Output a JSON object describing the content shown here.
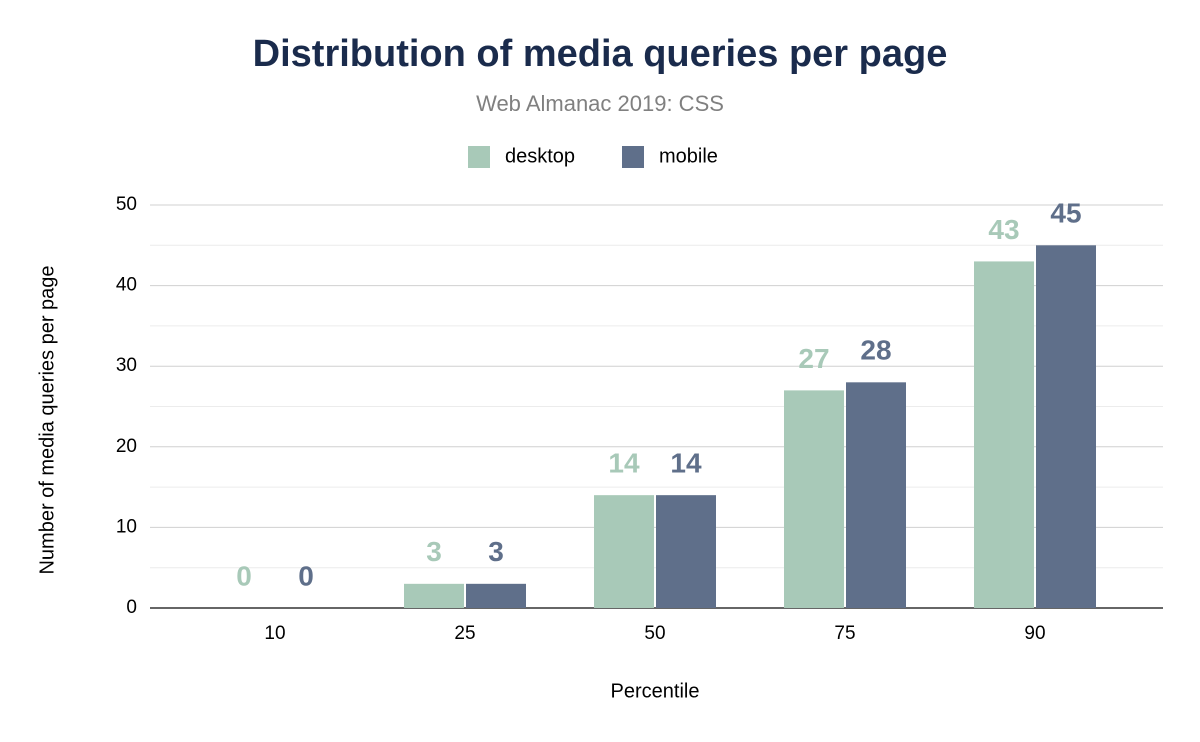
{
  "chart_data": {
    "type": "bar",
    "title": "Distribution of media queries per page",
    "subtitle": "Web Almanac 2019: CSS",
    "x_label": "Percentile",
    "y_label": "Number of media queries per page",
    "categories": [
      "10",
      "25",
      "50",
      "75",
      "90"
    ],
    "series": [
      {
        "name": "desktop",
        "color": "#a8c9b8",
        "values": [
          0,
          3,
          14,
          27,
          43
        ]
      },
      {
        "name": "mobile",
        "color": "#5f6f8a",
        "values": [
          0,
          3,
          14,
          28,
          45
        ]
      }
    ],
    "ylim": [
      0,
      50
    ],
    "yticks": [
      0,
      10,
      20,
      30,
      40,
      50
    ],
    "minor_yticks": [
      5,
      15,
      25,
      35,
      45
    ],
    "grid": true,
    "legend": "top"
  }
}
